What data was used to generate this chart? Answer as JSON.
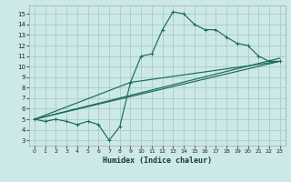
{
  "xlabel": "Humidex (Indice chaleur)",
  "bg_color": "#cce8e8",
  "grid_color": "#aacccc",
  "line_color": "#1a6b5a",
  "xlim": [
    -0.5,
    23.5
  ],
  "ylim": [
    2.5,
    15.8
  ],
  "xticks": [
    0,
    1,
    2,
    3,
    4,
    5,
    6,
    7,
    8,
    9,
    10,
    11,
    12,
    13,
    14,
    15,
    16,
    17,
    18,
    19,
    20,
    21,
    22,
    23
  ],
  "yticks": [
    3,
    4,
    5,
    6,
    7,
    8,
    9,
    10,
    11,
    12,
    13,
    14,
    15
  ],
  "curve1_x": [
    0,
    1,
    2,
    3,
    4,
    5,
    6,
    7,
    8,
    9,
    10,
    11,
    12,
    13,
    14,
    15,
    16,
    17,
    18,
    19,
    20,
    21,
    22,
    23
  ],
  "curve1_y": [
    5.0,
    4.8,
    5.0,
    4.8,
    4.5,
    4.8,
    4.5,
    3.0,
    4.3,
    8.5,
    11.0,
    11.2,
    13.5,
    15.2,
    15.0,
    14.0,
    13.5,
    13.5,
    12.8,
    12.2,
    12.0,
    11.0,
    10.5,
    10.5
  ],
  "line1_x": [
    0,
    23
  ],
  "line1_y": [
    5.0,
    10.5
  ],
  "line2_x": [
    0,
    23
  ],
  "line2_y": [
    5.0,
    10.8
  ],
  "line3_x": [
    0,
    9,
    23
  ],
  "line3_y": [
    5.0,
    8.5,
    10.5
  ]
}
